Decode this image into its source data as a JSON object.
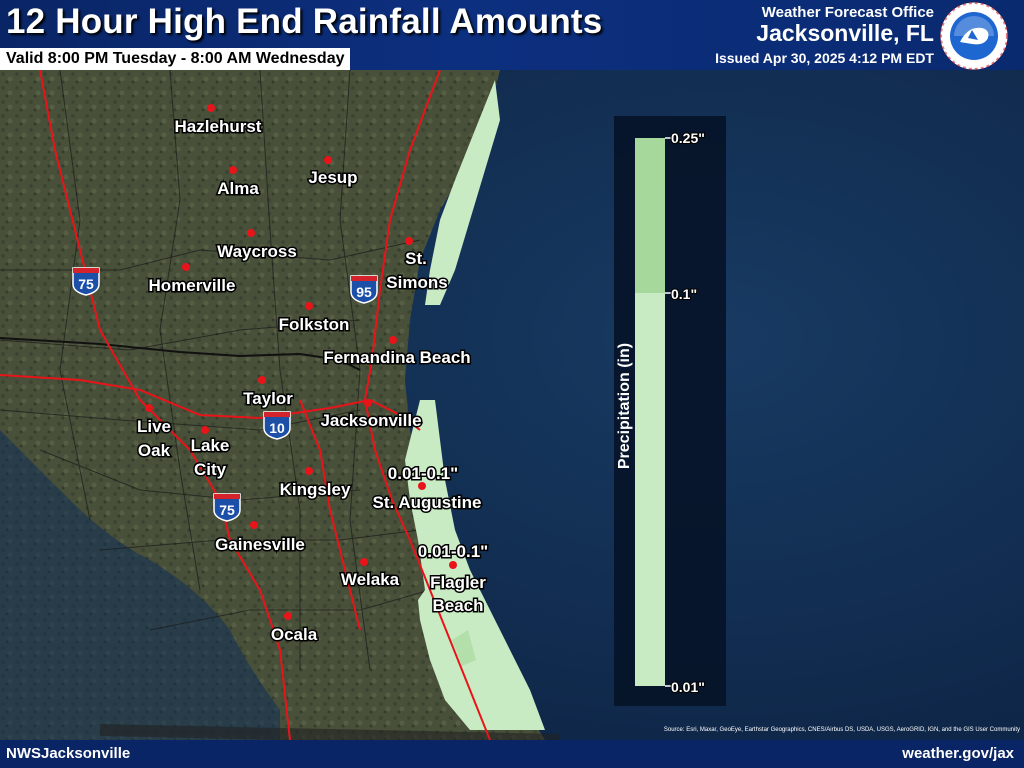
{
  "header": {
    "title": "12 Hour High End Rainfall Amounts",
    "valid": "Valid 8:00 PM Tuesday - 8:00 AM Wednesday",
    "office": "Weather Forecast Office",
    "city": "Jacksonville, FL",
    "issued": "Issued Apr 30, 2025 4:12 PM EDT",
    "logo_text": "NATIONAL WEATHER SERVICE"
  },
  "footer": {
    "left": "NWSJacksonville",
    "right": "weather.gov/jax",
    "source": "Source: Esri, Maxar, GeoEye, Earthstar Geographics, CNES/Airbus DS, USDA, USGS, AeroGRID, IGN, and the GIS User Community"
  },
  "legend": {
    "title": "Precipitation (in)",
    "labels": [
      "0.25\"",
      "0.1\"",
      "0.01\""
    ],
    "bins": [
      {
        "range": "0.1-0.25",
        "color": "#a5d89a"
      },
      {
        "range": "0.01-0.1",
        "color": "#c9ebc3"
      }
    ]
  },
  "cities": [
    {
      "name": "Hazlehurst"
    },
    {
      "name": "Alma"
    },
    {
      "name": "Jesup"
    },
    {
      "name": "Waycross"
    },
    {
      "name": "St."
    },
    {
      "name": "Simons"
    },
    {
      "name": "Homerville"
    },
    {
      "name": "Folkston"
    },
    {
      "name": "Fernandina Beach"
    },
    {
      "name": "Taylor"
    },
    {
      "name": "Jacksonville"
    },
    {
      "name": "Live"
    },
    {
      "name": "Oak"
    },
    {
      "name": "Lake"
    },
    {
      "name": "City"
    },
    {
      "name": "Kingsley"
    },
    {
      "name": "St. Augustine"
    },
    {
      "name": "Gainesville"
    },
    {
      "name": "Welaka"
    },
    {
      "name": "Flagler"
    },
    {
      "name": "Beach"
    },
    {
      "name": "Ocala"
    }
  ],
  "annotations": [
    "0.01-0.1\"",
    "0.01-0.1\""
  ],
  "interstates": [
    "75",
    "95",
    "10",
    "75"
  ],
  "colors": {
    "header": "#0a2566",
    "rain_light": "#c9ebc3",
    "rain_medium": "#a5d89a",
    "city_dot": "#e8141a",
    "road": "#e8141a",
    "ocean": "#102a4e"
  }
}
